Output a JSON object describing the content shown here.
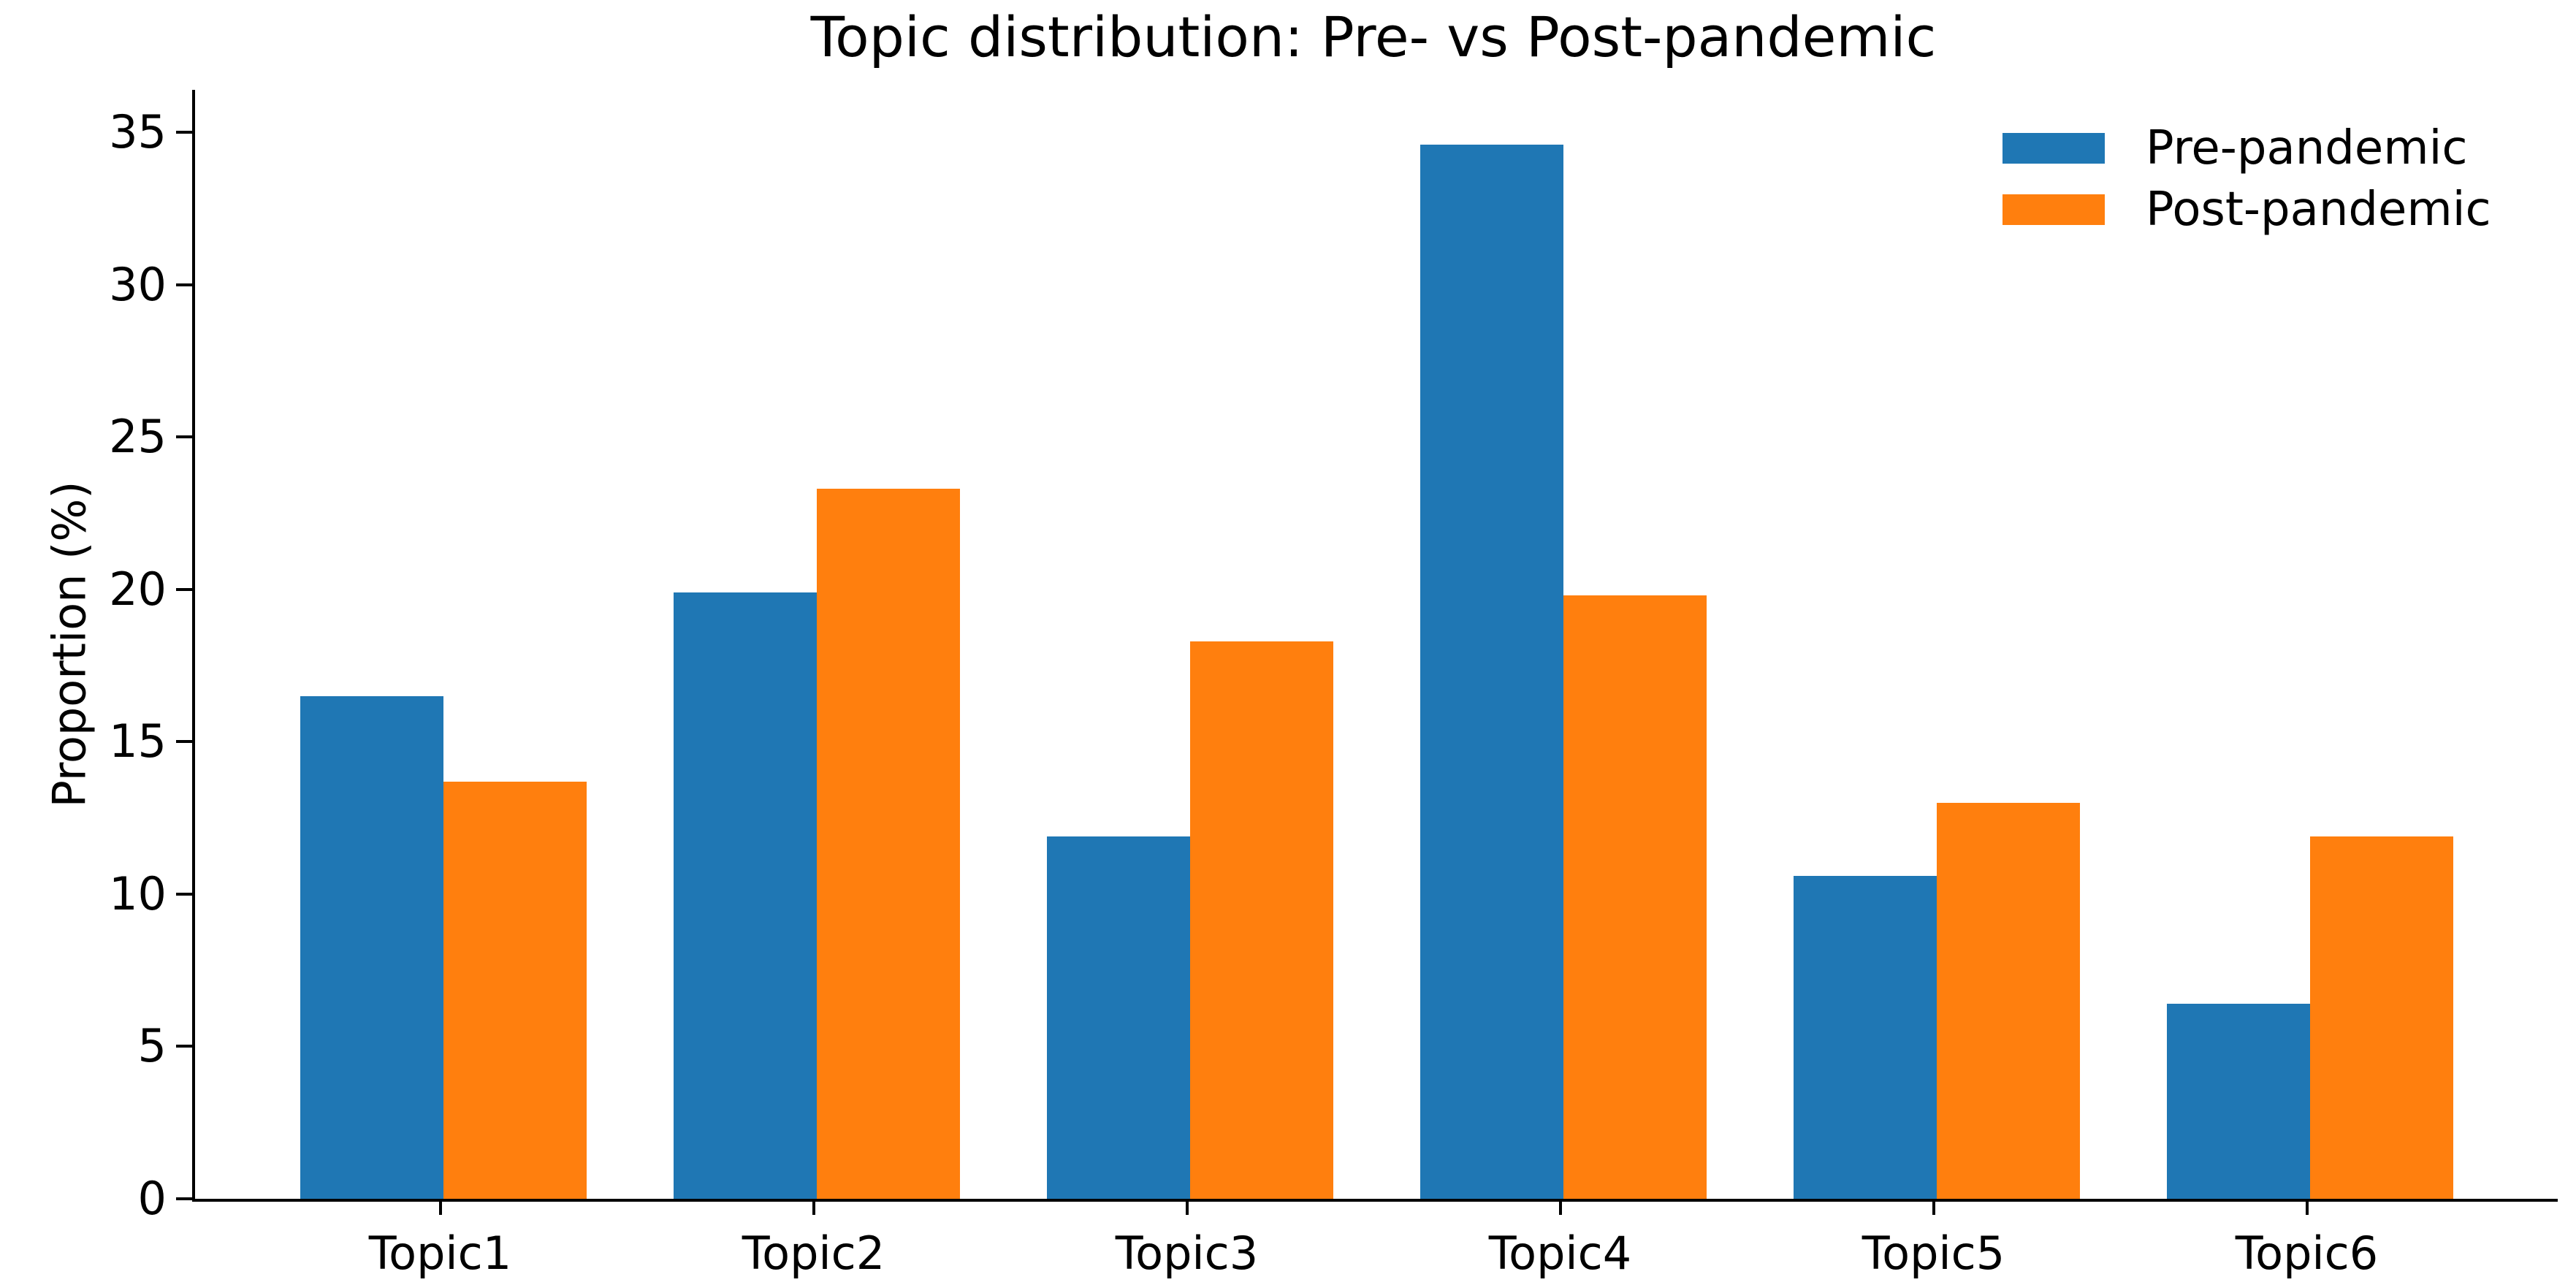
{
  "chart_data": {
    "type": "bar",
    "title": "Topic distribution: Pre- vs Post-pandemic",
    "xlabel": "",
    "ylabel": "Proportion (%)",
    "categories": [
      "Topic1",
      "Topic2",
      "Topic3",
      "Topic4",
      "Topic5",
      "Topic6"
    ],
    "series": [
      {
        "name": "Pre-pandemic",
        "color": "#1f77b4",
        "values": [
          16.5,
          19.9,
          11.9,
          34.6,
          10.6,
          6.4
        ]
      },
      {
        "name": "Post-pandemic",
        "color": "#ff7f0e",
        "values": [
          13.7,
          23.3,
          18.3,
          19.8,
          13.0,
          11.9
        ]
      }
    ],
    "ylim": [
      0,
      36.4
    ],
    "yticks": [
      0,
      5,
      10,
      15,
      20,
      25,
      30,
      35
    ],
    "grid": false,
    "legend_position": "upper right",
    "axis_color": "#000000",
    "background_color": "#ffffff"
  }
}
